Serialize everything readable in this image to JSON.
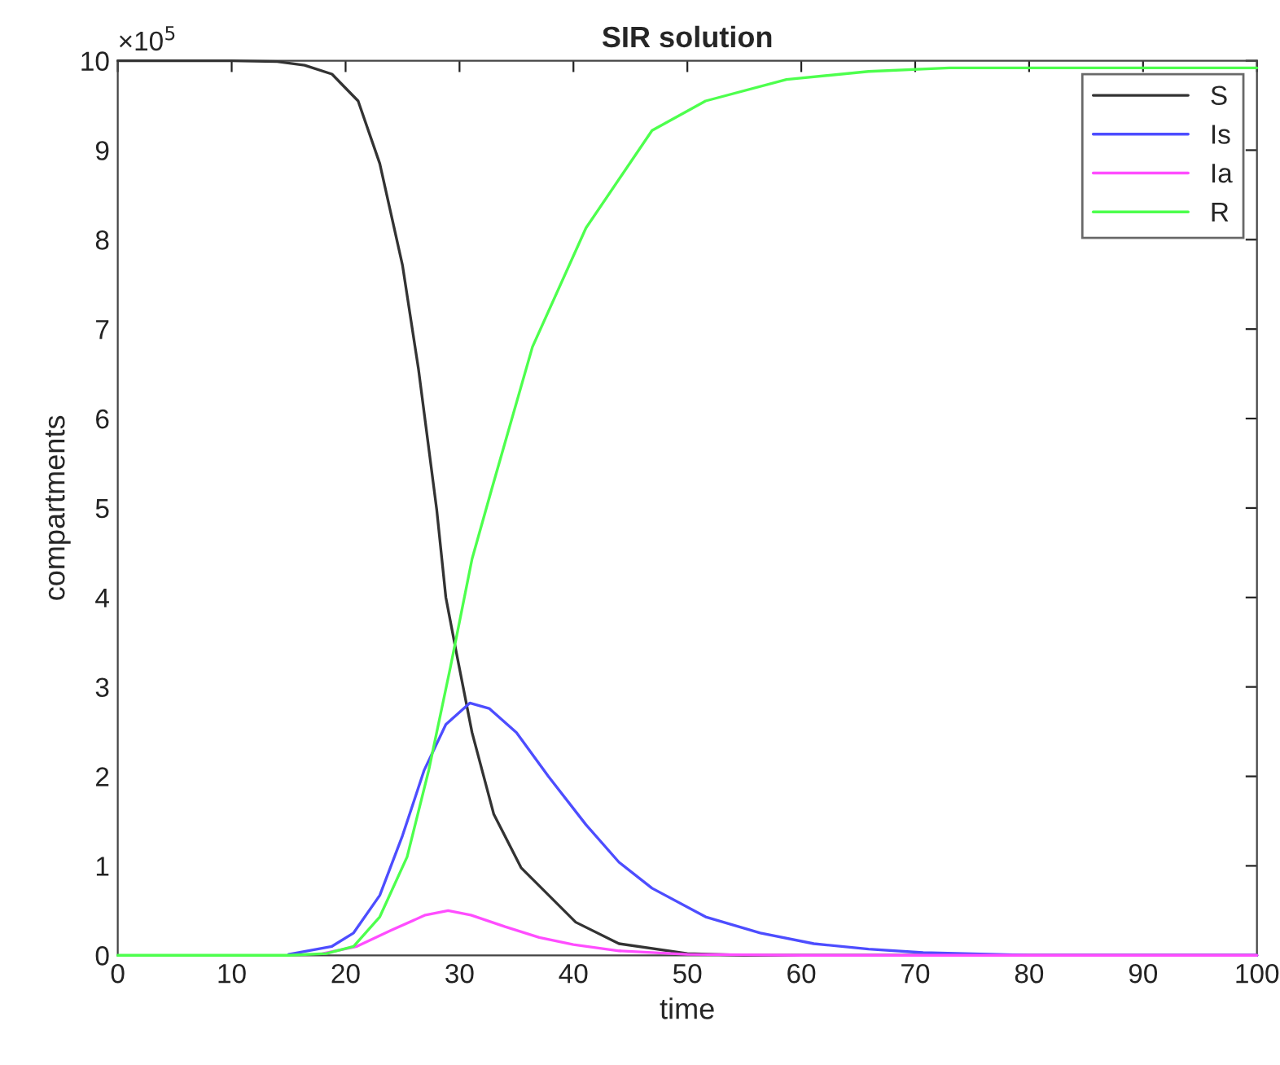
{
  "chart_data": {
    "type": "line",
    "title": "SIR solution",
    "xlabel": "time",
    "ylabel": "compartments",
    "annotations": [
      "×10$^{5}$"
    ],
    "xlim": [
      0,
      100
    ],
    "xticks": [
      0,
      10,
      20,
      30,
      40,
      50,
      60,
      70,
      80,
      90,
      100
    ],
    "ylim": [
      0,
      10
    ],
    "yticks": [
      0,
      1,
      2,
      3,
      4,
      5,
      6,
      7,
      8,
      9,
      10
    ],
    "grid": false,
    "legend": "top right",
    "line_style": "solid",
    "marker": "none",
    "series": [
      {
        "name": "S",
        "color": "#333333",
        "x": [
          0,
          10,
          14,
          16.4,
          18.8,
          21.1,
          23.0,
          25.0,
          26.4,
          28.0,
          28.8,
          29.7,
          31.1,
          33.0,
          35.4,
          40.2,
          44,
          50,
          55,
          100
        ],
        "values": [
          10,
          10,
          9.99,
          9.95,
          9.85,
          9.55,
          8.85,
          7.71,
          6.55,
          4.98,
          4.0,
          3.4,
          2.49,
          1.58,
          0.98,
          0.37,
          0.13,
          0.02,
          0,
          0
        ]
      },
      {
        "name": "Is",
        "color": "#4d4dff",
        "x": [
          15,
          18.8,
          20.7,
          23,
          25,
          26.9,
          28.8,
          30.9,
          32.6,
          35,
          37.8,
          41.1,
          44,
          46.9,
          51.6,
          56.4,
          61.1,
          65.9,
          70.7,
          80,
          100
        ],
        "values": [
          0.01,
          0.1,
          0.25,
          0.67,
          1.34,
          2.07,
          2.58,
          2.82,
          2.76,
          2.49,
          2.0,
          1.46,
          1.04,
          0.75,
          0.43,
          0.25,
          0.13,
          0.07,
          0.03,
          0,
          0
        ]
      },
      {
        "name": "Ia",
        "color": "#ff4dff",
        "x": [
          18,
          21,
          24,
          27,
          29,
          31,
          34,
          37,
          40,
          44,
          50,
          60,
          100
        ],
        "values": [
          0.02,
          0.1,
          0.28,
          0.45,
          0.5,
          0.45,
          0.32,
          0.2,
          0.12,
          0.05,
          0.01,
          0,
          0
        ]
      },
      {
        "name": "R",
        "color": "#4dff4d",
        "x": [
          0,
          15,
          18.3,
          20.7,
          23,
          25.4,
          27.3,
          29.2,
          31.1,
          32.8,
          36.4,
          41.1,
          46.9,
          51.6,
          58.7,
          65.9,
          73,
          100
        ],
        "values": [
          0,
          0,
          0.02,
          0.1,
          0.43,
          1.1,
          2.07,
          3.22,
          4.43,
          5.2,
          6.8,
          8.13,
          9.22,
          9.55,
          9.79,
          9.88,
          9.92,
          9.92
        ]
      }
    ]
  }
}
